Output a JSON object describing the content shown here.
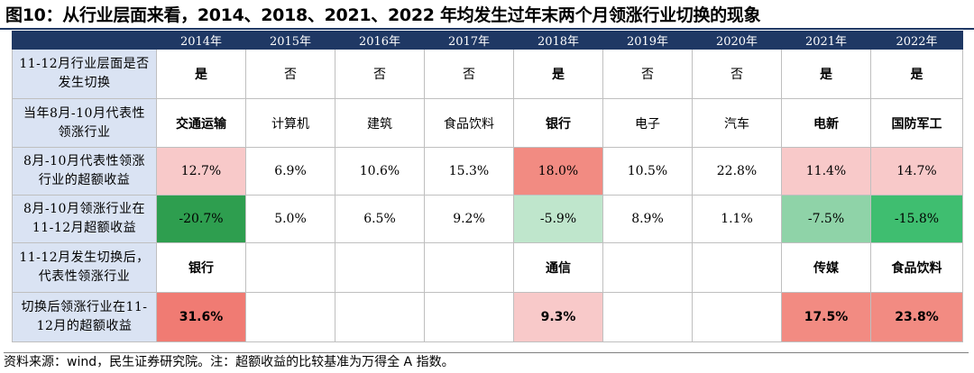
{
  "title": "图10：从行业层面来看，2014、2018、2021、2022 年均发生过年末两个月领涨行业切换的现象",
  "columns": [
    "2014年",
    "2015年",
    "2016年",
    "2017年",
    "2018年",
    "2019年",
    "2020年",
    "2021年",
    "2022年"
  ],
  "rows": [
    {
      "label_line1": "11-12月行业层面是否",
      "label_line2": "发生切换",
      "cells": [
        "是",
        "否",
        "否",
        "否",
        "是",
        "否",
        "否",
        "是",
        "是"
      ]
    },
    {
      "label_line1": "当年8月-10月代表性",
      "label_line2": "领涨行业",
      "cells": [
        "交通运输",
        "计算机",
        "建筑",
        "食品饮料",
        "银行",
        "电子",
        "汽车",
        "电新",
        "国防军工"
      ]
    },
    {
      "label_line1": "8月-10月代表性领涨",
      "label_line2": "行业的超额收益",
      "cells": [
        "12.7%",
        "6.9%",
        "10.6%",
        "15.3%",
        "18.0%",
        "10.5%",
        "22.8%",
        "11.4%",
        "14.7%"
      ]
    },
    {
      "label_line1": "8月-10月领涨行业在",
      "label_line2": "11-12月超额收益",
      "cells": [
        "-20.7%",
        "5.0%",
        "6.5%",
        "9.2%",
        "-5.9%",
        "8.9%",
        "1.1%",
        "-7.5%",
        "-15.8%"
      ]
    },
    {
      "label_line1": "11-12月发生切换后，",
      "label_line2": "代表性领涨行业",
      "cells": [
        "银行",
        "",
        "",
        "",
        "通信",
        "",
        "",
        "传媒",
        "食品饮料"
      ]
    },
    {
      "label_line1": "切换后领涨行业在11-",
      "label_line2": "12月的超额收益",
      "cells": [
        "31.6%",
        "",
        "",
        "",
        "9.3%",
        "",
        "",
        "17.5%",
        "23.8%"
      ]
    }
  ],
  "source": "资料来源：wind，民生证券研究院。注：超额收益的比较基准为万得全 A 指数。",
  "colors": {
    "header_bg": "#1f3864",
    "label_bg": "#dae3f3",
    "pale_red": "#f8c9c9",
    "red": "#f28b82",
    "deep_green": "#2e9e4f",
    "pale_green": "#bfe6cc"
  }
}
